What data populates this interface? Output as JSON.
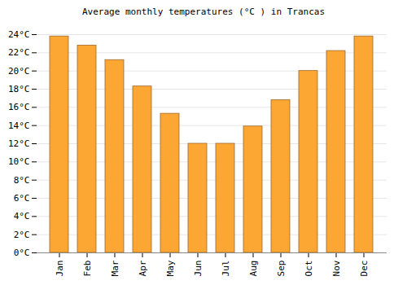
{
  "chart_data": {
    "type": "bar",
    "title": "Average monthly temperatures (°C ) in Trancas",
    "categories": [
      "Jan",
      "Feb",
      "Mar",
      "Apr",
      "May",
      "Jun",
      "Jul",
      "Aug",
      "Sep",
      "Oct",
      "Nov",
      "Dec"
    ],
    "values": [
      23.8,
      22.8,
      21.2,
      18.3,
      15.3,
      12.0,
      12.0,
      13.9,
      16.8,
      20.0,
      22.2,
      23.8
    ],
    "color": "#fca634",
    "ylim": [
      0,
      24
    ],
    "yticks": [
      {
        "value": 0,
        "label": "0°C"
      },
      {
        "value": 2,
        "label": "2°C"
      },
      {
        "value": 4,
        "label": "4°C"
      },
      {
        "value": 6,
        "label": "6°C"
      },
      {
        "value": 8,
        "label": "8°C"
      },
      {
        "value": 10,
        "label": "10°C"
      },
      {
        "value": 12,
        "label": "12°C"
      },
      {
        "value": 14,
        "label": "14°C"
      },
      {
        "value": 16,
        "label": "16°C"
      },
      {
        "value": 18,
        "label": "18°C"
      },
      {
        "value": 20,
        "label": "20°C"
      },
      {
        "value": 22,
        "label": "22°C"
      },
      {
        "value": 24,
        "label": "24°C"
      }
    ],
    "grid": true
  }
}
